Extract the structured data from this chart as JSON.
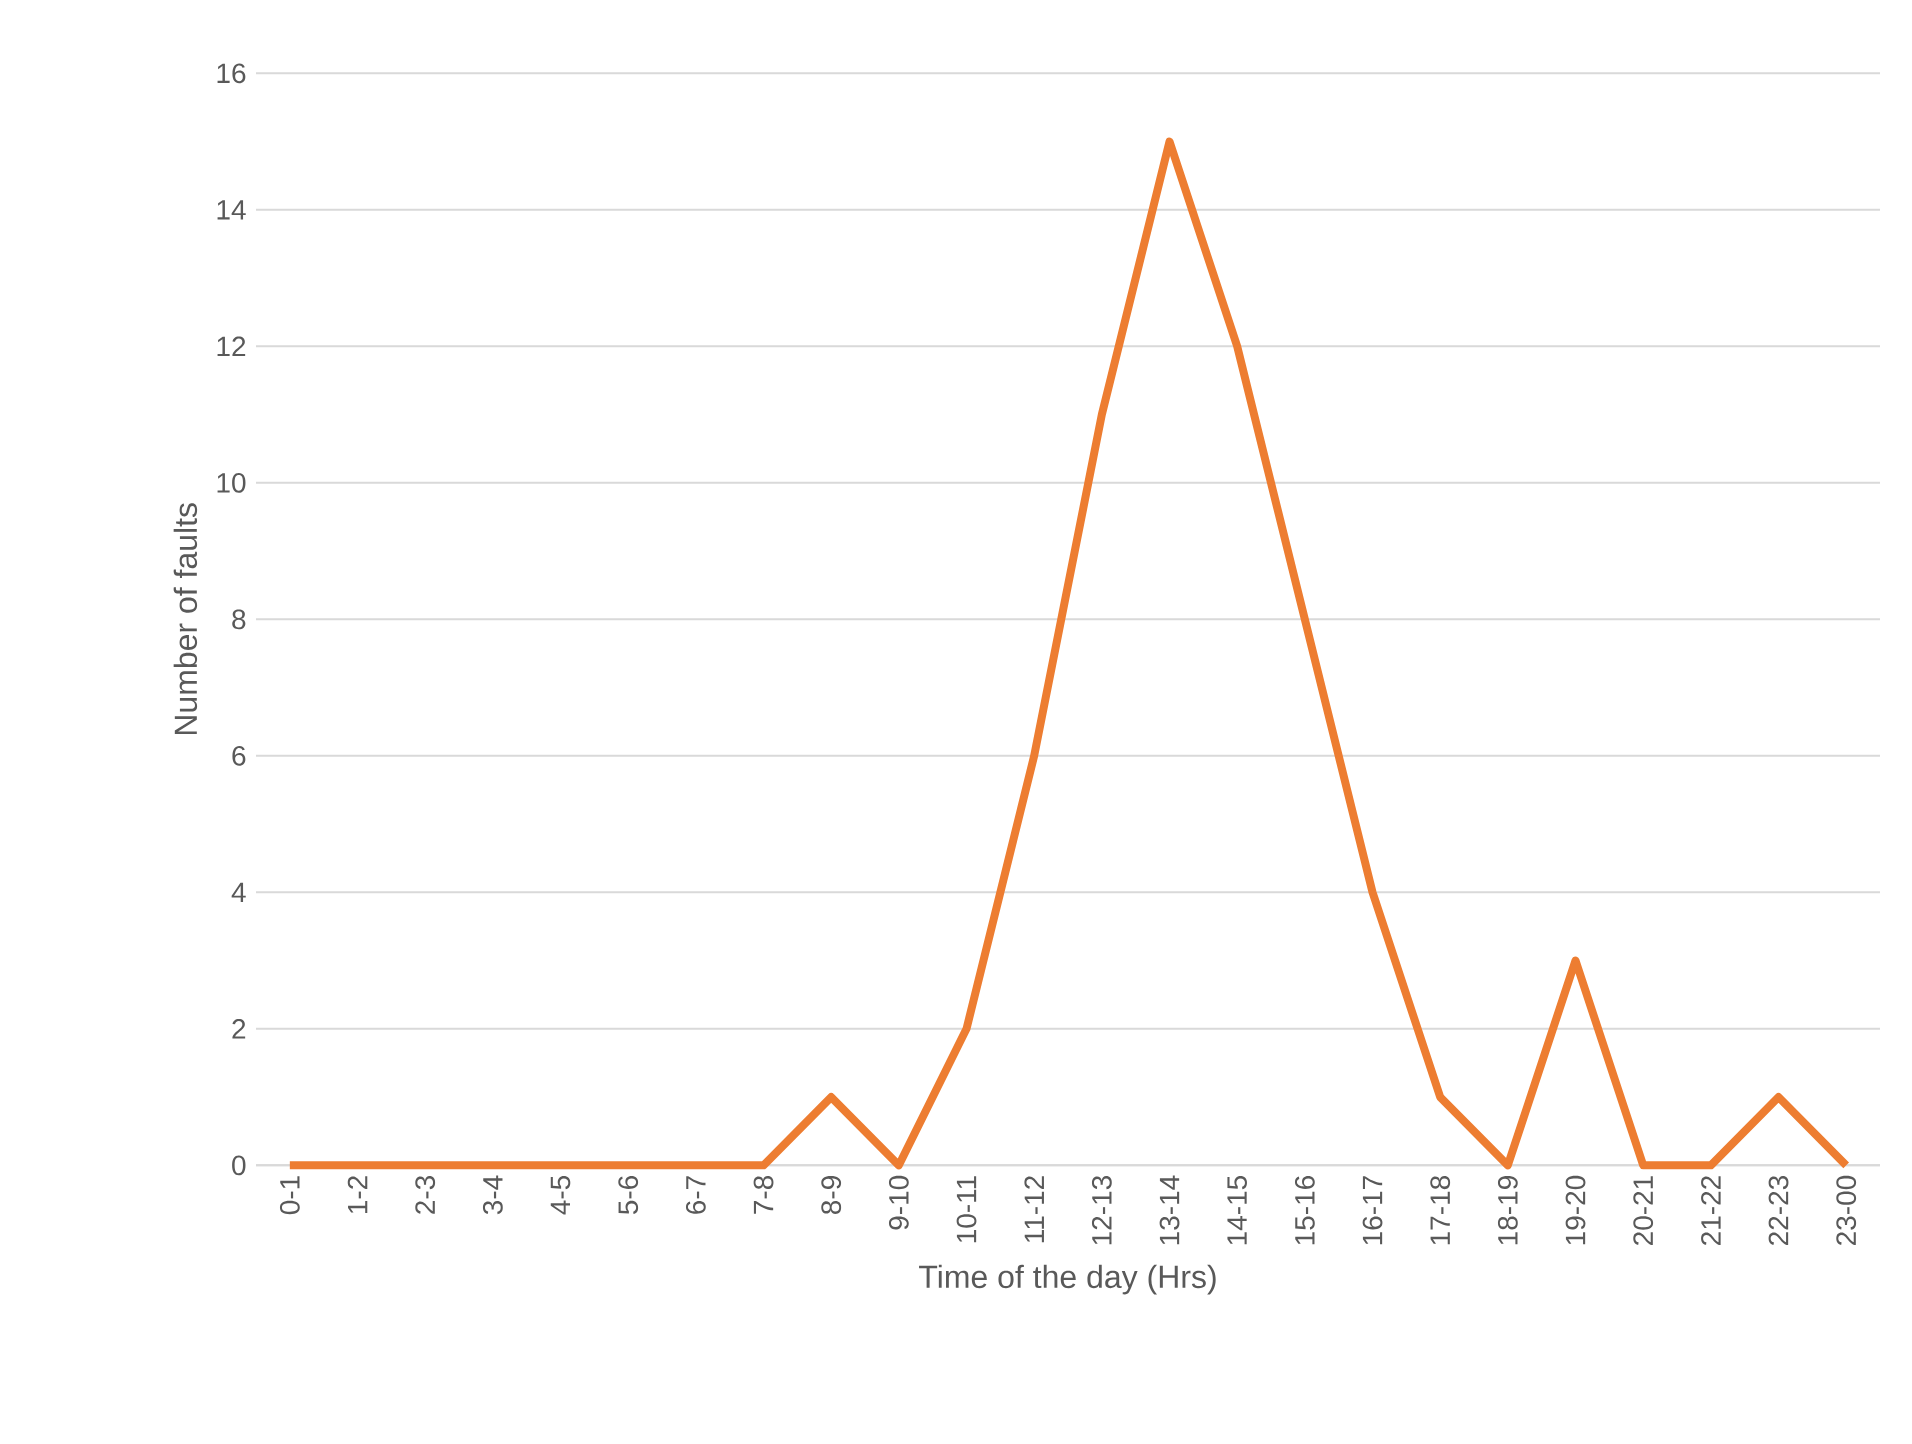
{
  "chart_data": {
    "type": "line",
    "xlabel": "Time of the day (Hrs)",
    "ylabel": "Number of faults",
    "categories": [
      "0-1",
      "1-2",
      "2-3",
      "3-4",
      "4-5",
      "5-6",
      "6-7",
      "7-8",
      "8-9",
      "9-10",
      "10-11",
      "11-12",
      "12-13",
      "13-14",
      "14-15",
      "15-16",
      "16-17",
      "17-18",
      "18-19",
      "19-20",
      "20-21",
      "21-22",
      "22-23",
      "23-00"
    ],
    "values": [
      0,
      0,
      0,
      0,
      0,
      0,
      0,
      0,
      1,
      0,
      2,
      6,
      11,
      15,
      12,
      8,
      4,
      1,
      0,
      3,
      0,
      0,
      1,
      0
    ],
    "color": "#ed7d31",
    "ylim": [
      0,
      16
    ],
    "yticks": [
      0,
      2,
      4,
      6,
      8,
      10,
      12,
      14,
      16
    ],
    "grid": "y",
    "marker": "none",
    "line_style": "solid"
  }
}
